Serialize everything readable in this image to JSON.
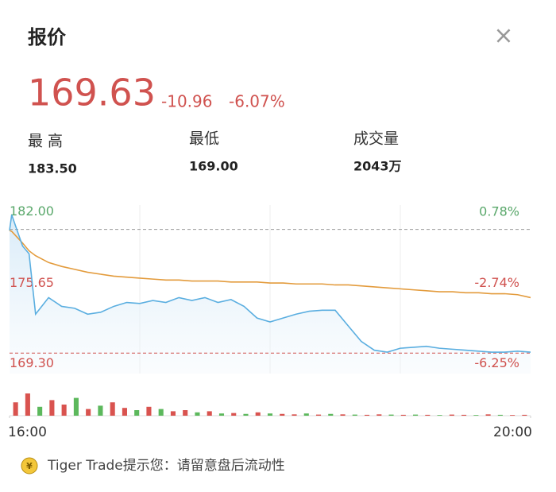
{
  "header": {
    "title": "报价",
    "close": "×"
  },
  "quote": {
    "price": "169.63",
    "change": "-10.96",
    "change_pct": "-6.07%"
  },
  "stats": [
    {
      "label": "最 高",
      "value": "183.50"
    },
    {
      "label": "最低",
      "value": "169.00"
    },
    {
      "label": "成交量",
      "value": "2043万"
    }
  ],
  "chart_data": {
    "type": "line",
    "x": [
      0,
      1,
      6,
      9,
      12,
      18,
      24,
      30,
      36,
      42,
      48,
      54,
      60,
      66,
      72,
      78,
      84,
      90,
      96,
      102,
      108,
      114,
      120,
      126,
      132,
      138,
      144,
      150,
      156,
      162,
      168,
      174,
      180,
      186,
      192,
      198,
      204,
      210,
      216,
      222,
      228,
      234,
      240
    ],
    "xlim": [
      0,
      240
    ],
    "xticks": [
      {
        "value": 0,
        "label": "16:00"
      },
      {
        "value": 240,
        "label": "20:00"
      }
    ],
    "ylim": [
      167.2,
      184.5
    ],
    "yticks": [
      {
        "value": 182.0,
        "label": "182.00"
      },
      {
        "value": 175.65,
        "label": "175.65"
      },
      {
        "value": 169.3,
        "label": "169.30"
      }
    ],
    "y2lim": [
      -7.41,
      2.17
    ],
    "y2ticks": [
      {
        "value": 0.78,
        "label": "0.78%"
      },
      {
        "value": -2.74,
        "label": "-2.74%"
      },
      {
        "value": -6.25,
        "label": "-6.25%"
      }
    ],
    "grid": "vertical",
    "series": [
      {
        "color": "#5aaee0",
        "values": [
          181.9,
          183.5,
          180.3,
          179.5,
          173.3,
          175.0,
          174.1,
          173.9,
          173.3,
          173.5,
          174.1,
          174.5,
          174.4,
          174.7,
          174.5,
          175.0,
          174.7,
          175.0,
          174.5,
          174.8,
          174.1,
          172.9,
          172.5,
          172.9,
          173.3,
          173.6,
          173.7,
          173.7,
          172.1,
          170.5,
          169.6,
          169.4,
          169.8,
          169.9,
          170.0,
          169.8,
          169.7,
          169.6,
          169.5,
          169.4,
          169.4,
          169.5,
          169.4
        ]
      },
      {
        "color": "#e39b3c",
        "values": [
          181.9,
          181.8,
          180.6,
          179.8,
          179.3,
          178.6,
          178.2,
          177.9,
          177.6,
          177.4,
          177.2,
          177.1,
          177.0,
          176.9,
          176.8,
          176.8,
          176.7,
          176.7,
          176.7,
          176.6,
          176.6,
          176.6,
          176.5,
          176.5,
          176.4,
          176.4,
          176.4,
          176.3,
          176.3,
          176.2,
          176.1,
          176.0,
          175.9,
          175.8,
          175.7,
          175.6,
          175.6,
          175.5,
          175.5,
          175.4,
          175.4,
          175.3,
          175.0
        ]
      }
    ],
    "volume": {
      "vlim": [
        0,
        100
      ],
      "values": [
        60,
        100,
        40,
        70,
        50,
        80,
        30,
        45,
        60,
        35,
        25,
        40,
        30,
        20,
        25,
        15,
        20,
        10,
        12,
        8,
        15,
        10,
        8,
        6,
        10,
        5,
        8,
        6,
        5,
        4,
        6,
        5,
        4,
        5,
        4,
        3,
        5,
        4,
        3,
        6,
        4,
        3,
        4
      ],
      "colors": [
        "#d9534f",
        "#d9534f",
        "#5cb85c",
        "#d9534f",
        "#d9534f",
        "#5cb85c",
        "#d9534f",
        "#5cb85c",
        "#d9534f",
        "#d9534f",
        "#5cb85c",
        "#d9534f",
        "#5cb85c",
        "#d9534f",
        "#d9534f",
        "#5cb85c",
        "#d9534f",
        "#5cb85c",
        "#d9534f",
        "#5cb85c",
        "#d9534f",
        "#5cb85c",
        "#d9534f",
        "#d9534f",
        "#5cb85c",
        "#d9534f",
        "#5cb85c",
        "#d9534f",
        "#5cb85c",
        "#d9534f",
        "#d9534f",
        "#5cb85c",
        "#d9534f",
        "#5cb85c",
        "#d9534f",
        "#5cb85c",
        "#d9534f",
        "#d9534f",
        "#5cb85c",
        "#d9534f",
        "#5cb85c",
        "#d9534f",
        "#d9534f"
      ]
    }
  },
  "footer": {
    "icon": "¥",
    "text": "Tiger Trade提示您：请留意盘后流动性"
  }
}
